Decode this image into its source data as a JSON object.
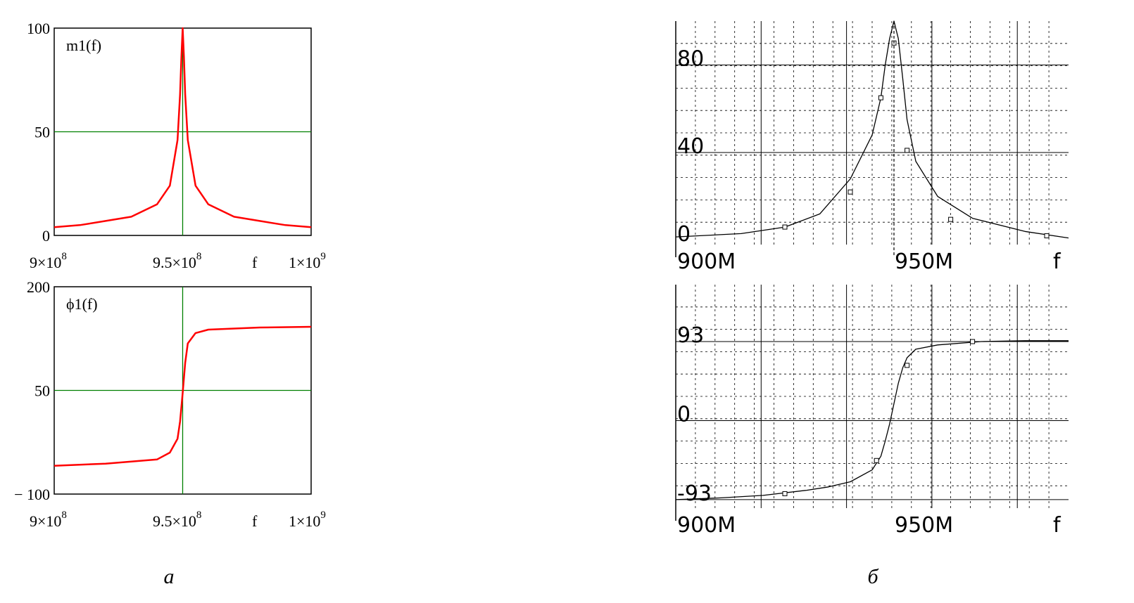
{
  "captions": {
    "left": "a",
    "right": "б"
  },
  "chart_data": [
    {
      "type": "line",
      "panel": "a-top",
      "trace_label": "m1(f)",
      "xlabel": "f",
      "ylim": [
        0,
        100
      ],
      "xlim": [
        900000000,
        1000000000
      ],
      "yticks": [
        "0",
        "50",
        "100"
      ],
      "xticks": [
        {
          "base": "9×10",
          "exp": "8"
        },
        {
          "base": "9.5×10",
          "exp": "8"
        },
        {
          "base": "1×10",
          "exp": "9"
        }
      ],
      "marker_x": 950000000,
      "marker_y": 50,
      "series": [
        {
          "color": "#ff0000",
          "x": [
            900000000,
            910000000,
            920000000,
            930000000,
            940000000,
            945000000,
            948000000,
            949000000,
            949500000,
            950000000,
            950500000,
            951000000,
            952000000,
            955000000,
            960000000,
            970000000,
            980000000,
            990000000,
            1000000000
          ],
          "y": [
            4,
            5,
            7,
            9,
            15,
            24,
            46,
            68,
            86,
            100,
            86,
            68,
            46,
            24,
            15,
            9,
            7,
            5,
            4
          ]
        }
      ]
    },
    {
      "type": "line",
      "panel": "a-bottom",
      "trace_label": "ϕ1(f)",
      "xlabel": "f",
      "ylim": [
        -100,
        200
      ],
      "xlim": [
        900000000,
        1000000000
      ],
      "yticks": [
        "− 100",
        "50",
        "200"
      ],
      "xticks": [
        {
          "base": "9×10",
          "exp": "8"
        },
        {
          "base": "9.5×10",
          "exp": "8"
        },
        {
          "base": "1×10",
          "exp": "9"
        }
      ],
      "marker_x": 950000000,
      "marker_y": 50,
      "series": [
        {
          "color": "#ff0000",
          "x": [
            900000000,
            920000000,
            940000000,
            945000000,
            948000000,
            949000000,
            950000000,
            951000000,
            952000000,
            955000000,
            960000000,
            980000000,
            1000000000
          ],
          "y": [
            -59,
            -56,
            -50,
            -40,
            -20,
            5,
            46,
            90,
            118,
            133,
            138,
            141,
            142
          ]
        }
      ]
    },
    {
      "type": "line",
      "panel": "б-top",
      "xlabel": "f",
      "ylim": [
        -2,
        100
      ],
      "xlim": [
        900,
        990
      ],
      "yticks": [
        "0",
        "40",
        "80"
      ],
      "xticks": [
        "900M",
        "950M"
      ],
      "series": [
        {
          "color": "#000000",
          "x": [
            900,
            915,
            925,
            933,
            940,
            945,
            947,
            948,
            949,
            950,
            951,
            952,
            953,
            955,
            960,
            968,
            980,
            990
          ],
          "y": [
            1.5,
            3,
            6,
            12,
            28,
            48,
            65,
            80,
            92,
            100,
            92,
            74,
            55,
            36,
            20,
            10,
            4,
            1
          ]
        }
      ],
      "markers": [
        {
          "x": 925,
          "y": 6
        },
        {
          "x": 940,
          "y": 22
        },
        {
          "x": 947,
          "y": 65
        },
        {
          "x": 950,
          "y": 90
        },
        {
          "x": 953,
          "y": 41
        },
        {
          "x": 963,
          "y": 9.5
        },
        {
          "x": 985,
          "y": 2
        }
      ]
    },
    {
      "type": "line",
      "panel": "б-bottom",
      "xlabel": "f",
      "ylim": [
        -103,
        160
      ],
      "xlim": [
        900,
        990
      ],
      "yticks": [
        "-93",
        "0",
        "93"
      ],
      "xticks": [
        "900M",
        "950M"
      ],
      "series": [
        {
          "color": "#000000",
          "x": [
            900,
            910,
            920,
            930,
            935,
            940,
            945,
            947,
            948,
            949,
            950,
            951,
            952,
            953,
            955,
            960,
            970,
            980,
            990
          ],
          "y": [
            -93,
            -91,
            -88,
            -82,
            -78,
            -72,
            -58,
            -42,
            -24,
            -4,
            20,
            44,
            62,
            74,
            84,
            89,
            93,
            94,
            94
          ]
        }
      ],
      "markers": [
        {
          "x": 925,
          "y": -86
        },
        {
          "x": 946,
          "y": -47
        },
        {
          "x": 953,
          "y": 65
        },
        {
          "x": 968,
          "y": 93
        }
      ]
    }
  ]
}
